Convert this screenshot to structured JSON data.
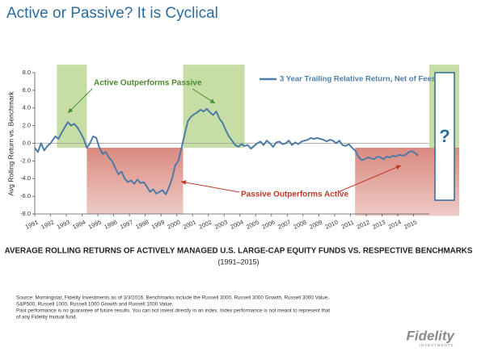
{
  "chart_data": {
    "type": "line",
    "title": "Active or Passive? It is Cyclical",
    "y_label": "Avg Rolling Return vs. Benchmark",
    "caption": "AVERAGE ROLLING RETURNS OF ACTIVELY MANAGED U.S. LARGE-CAP EQUITY FUNDS VS. RESPECTIVE BENCHMARKS",
    "caption_sub": "(1991–2015)",
    "annotations": {
      "active": "Active Outperforms Passive",
      "passive": "Passive Outperforms Active",
      "unknown": "?"
    },
    "notes": [
      "Source: Morningstar, Fidelity Investments as of 3/3/2016. Benchmarks include the Russell 3000, Russell 3000 Growth, Russell 3000 Value,",
      "S&P500, Russell 1000, Russell 1000 Growth and Russell 1000 Value.",
      "Past performance is no guarantee of future results.  You can not invest directly in an index.  Index performance is not meant to represent that",
      "of any Fidelity mutual fund."
    ],
    "logo": "Fidelity",
    "logo_sub": "INVESTMENTS",
    "xlim": [
      1991,
      2016
    ],
    "ylim": [
      -8,
      8
    ],
    "xticks": [
      1991,
      1992,
      1993,
      1994,
      1995,
      1996,
      1997,
      1998,
      1999,
      2000,
      2001,
      2002,
      2003,
      2004,
      2005,
      2006,
      2007,
      2008,
      2009,
      2010,
      2011,
      2012,
      2013,
      2014,
      2015
    ],
    "yticks": [
      {
        "value": 8,
        "label": "8.0"
      },
      {
        "value": 6,
        "label": "6.0"
      },
      {
        "value": 4,
        "label": "4.0"
      },
      {
        "value": 2,
        "label": "2.0"
      },
      {
        "value": 0,
        "label": "0.0"
      },
      {
        "value": -2,
        "label": "-2.0"
      },
      {
        "value": -4,
        "label": "-4.0"
      },
      {
        "value": -6,
        "label": "-6.0"
      },
      {
        "value": -8,
        "label": "-8.0"
      }
    ],
    "regions": [
      {
        "kind": "green",
        "x": [
          1992.4,
          1994.3
        ],
        "y": [
          -0.5,
          8.9
        ]
      },
      {
        "kind": "red",
        "x": [
          1994.3,
          2000.4
        ],
        "y": [
          -8,
          -0.5
        ]
      },
      {
        "kind": "green",
        "x": [
          2000.4,
          2004.3
        ],
        "y": [
          -0.5,
          8.9
        ]
      },
      {
        "kind": "red",
        "x": [
          2011.3,
          2017.9
        ],
        "y": [
          -8.2,
          -0.5
        ]
      },
      {
        "kind": "green",
        "x": [
          2016,
          2017.9
        ],
        "y": [
          -0.5,
          8.9
        ]
      }
    ],
    "region_colors": {
      "green": "#c6dea6",
      "red": "#d98a80"
    },
    "series": [
      {
        "name": "3 Year Trailing Relative Return, Net of Fees",
        "color": "#4d7ca6",
        "x": [
          1991.0,
          1991.2,
          1991.4,
          1991.6,
          1991.8,
          1992.0,
          1992.3,
          1992.5,
          1992.7,
          1992.9,
          1993.1,
          1993.3,
          1993.5,
          1993.7,
          1993.9,
          1994.1,
          1994.3,
          1994.5,
          1994.7,
          1994.9,
          1995.1,
          1995.3,
          1995.5,
          1995.7,
          1995.9,
          1996.1,
          1996.3,
          1996.5,
          1996.7,
          1996.9,
          1997.1,
          1997.3,
          1997.5,
          1997.7,
          1997.9,
          1998.1,
          1998.3,
          1998.5,
          1998.7,
          1998.9,
          1999.1,
          1999.3,
          1999.5,
          1999.7,
          1999.9,
          2000.1,
          2000.3,
          2000.5,
          2000.7,
          2000.9,
          2001.1,
          2001.3,
          2001.5,
          2001.7,
          2001.9,
          2002.1,
          2002.3,
          2002.5,
          2002.7,
          2002.9,
          2003.1,
          2003.3,
          2003.5,
          2003.7,
          2003.9,
          2004.1,
          2004.3,
          2004.5,
          2004.7,
          2004.9,
          2005.1,
          2005.3,
          2005.5,
          2005.7,
          2005.9,
          2006.1,
          2006.3,
          2006.5,
          2006.7,
          2006.9,
          2007.1,
          2007.3,
          2007.5,
          2007.7,
          2007.9,
          2008.1,
          2008.3,
          2008.5,
          2008.7,
          2008.9,
          2009.1,
          2009.3,
          2009.5,
          2009.7,
          2009.9,
          2010.1,
          2010.3,
          2010.5,
          2010.7,
          2010.9,
          2011.1,
          2011.3,
          2011.5,
          2011.7,
          2011.9,
          2012.1,
          2012.3,
          2012.5,
          2012.7,
          2012.9,
          2013.1,
          2013.3,
          2013.5,
          2013.7,
          2013.9,
          2014.1,
          2014.3,
          2014.5,
          2014.7,
          2014.9,
          2015.1,
          2015.3
        ],
        "values": [
          -0.5,
          -1.0,
          0.0,
          -0.8,
          -0.3,
          0.0,
          0.8,
          0.5,
          1.2,
          1.8,
          2.4,
          2.0,
          2.2,
          1.8,
          1.2,
          0.5,
          -0.5,
          0.0,
          0.8,
          0.6,
          -0.5,
          -1.2,
          -1.0,
          -1.6,
          -2.0,
          -2.8,
          -3.5,
          -3.2,
          -4.0,
          -4.4,
          -4.2,
          -4.6,
          -4.1,
          -4.5,
          -4.4,
          -4.9,
          -5.5,
          -5.2,
          -5.7,
          -5.5,
          -5.3,
          -5.8,
          -5.0,
          -4.0,
          -2.5,
          -2.0,
          -0.5,
          1.0,
          2.5,
          3.0,
          3.3,
          3.5,
          3.8,
          3.6,
          3.9,
          3.5,
          3.2,
          3.6,
          2.8,
          2.3,
          1.5,
          0.8,
          0.3,
          -0.2,
          -0.4,
          -0.1,
          -0.3,
          -0.2,
          -0.6,
          -0.3,
          0.0,
          0.2,
          -0.2,
          0.3,
          0.0,
          -0.4,
          0.1,
          0.2,
          -0.1,
          0.0,
          0.3,
          -0.2,
          0.1,
          -0.1,
          0.2,
          0.3,
          0.4,
          0.6,
          0.5,
          0.6,
          0.5,
          0.4,
          0.2,
          0.4,
          0.3,
          0.0,
          0.3,
          -0.2,
          -0.3,
          -0.1,
          -0.5,
          -0.8,
          -1.5,
          -1.9,
          -1.8,
          -1.6,
          -1.7,
          -1.8,
          -1.5,
          -1.6,
          -1.8,
          -1.5,
          -1.6,
          -1.4,
          -1.5,
          -1.3,
          -1.4,
          -1.3,
          -1.0,
          -0.9,
          -1.1,
          -1.4
        ]
      }
    ]
  }
}
